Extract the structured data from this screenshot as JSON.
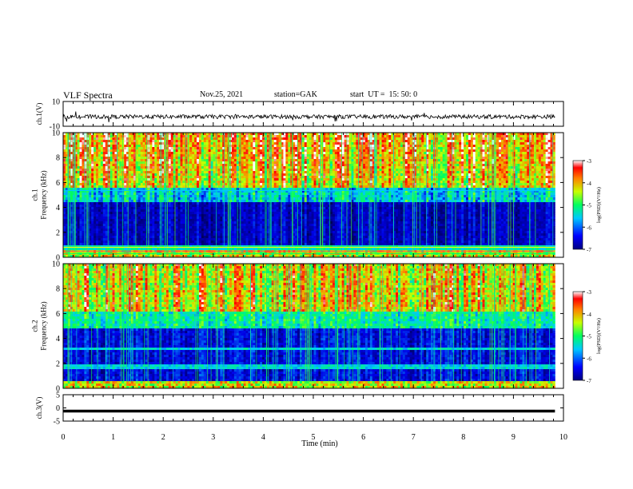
{
  "header": {
    "title": "VLF Spectra",
    "date": "Nov.25, 2021",
    "station": "station=GAK",
    "start": "start  UT =  15: 50: 0"
  },
  "chart_data": [
    {
      "type": "line",
      "name": "ch1-waveform",
      "ylabel": "ch.1(V)",
      "ylim": [
        -10,
        10
      ],
      "yticks": [
        "10",
        "-10"
      ],
      "x_range": [
        0,
        10
      ]
    },
    {
      "type": "heatmap",
      "name": "ch1-spectrogram",
      "ylabel": "ch.1\nFrequency (kHz)",
      "ylim": [
        0,
        10
      ],
      "yticks": [
        "0",
        "2",
        "4",
        "6",
        "8",
        "10"
      ],
      "x_range": [
        0,
        10
      ],
      "colorbar": {
        "label": "log(PSD)(V²/Hz)",
        "range": [
          -7,
          -3
        ],
        "ticks": [
          "-3",
          "-4",
          "-5",
          "-6",
          "-7"
        ]
      }
    },
    {
      "type": "heatmap",
      "name": "ch2-spectrogram",
      "ylabel": "ch.2\nFrequency (kHz)",
      "ylim": [
        0,
        10
      ],
      "yticks": [
        "0",
        "2",
        "4",
        "6",
        "8",
        "10"
      ],
      "x_range": [
        0,
        10
      ],
      "colorbar": {
        "label": "log(PSD)(V²/Hz)",
        "range": [
          -7,
          -3
        ],
        "ticks": [
          "-3",
          "-4",
          "-5",
          "-6",
          "-7"
        ]
      }
    },
    {
      "type": "line",
      "name": "ch3-waveform",
      "ylabel": "ch.3(V)",
      "ylim": [
        -5,
        5
      ],
      "yticks": [
        "5",
        "0",
        "-5"
      ],
      "x_range": [
        0,
        10
      ],
      "xlabel": "Time  (min)",
      "xticks": [
        "0",
        "1",
        "2",
        "3",
        "4",
        "5",
        "6",
        "7",
        "8",
        "9",
        "10"
      ]
    }
  ],
  "colors": {
    "spectrogram_low": "#000033",
    "spectrogram_mid": "#00ff66",
    "spectrogram_high": "#ff0000",
    "waveform": "#000000"
  }
}
